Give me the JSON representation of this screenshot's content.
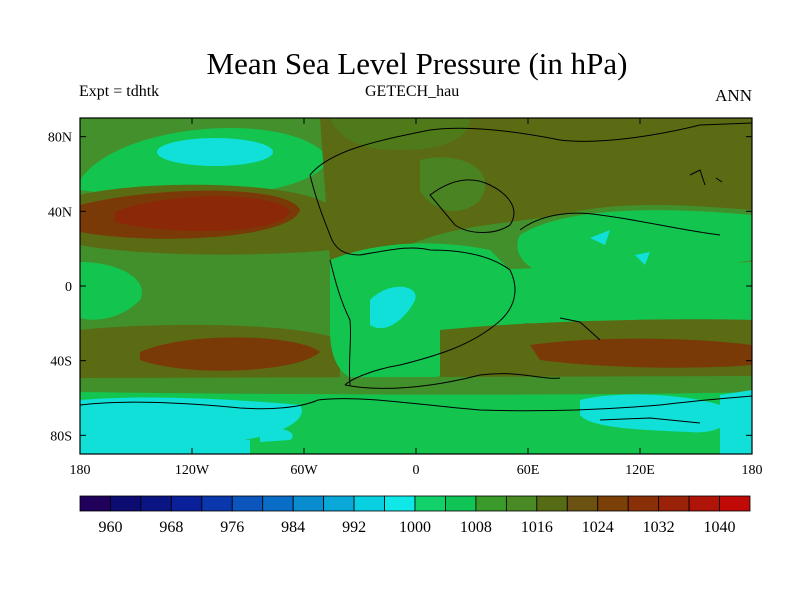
{
  "title": "Mean Sea Level Pressure (in hPa)",
  "left_label": "Expt = tdhtk",
  "center_label": "GETECH_hau",
  "right_label": "ANN",
  "lon_ticks": [
    {
      "value": -180,
      "label": "180"
    },
    {
      "value": -120,
      "label": "120W"
    },
    {
      "value": -60,
      "label": "60W"
    },
    {
      "value": 0,
      "label": "0"
    },
    {
      "value": 60,
      "label": "60E"
    },
    {
      "value": 120,
      "label": "120E"
    },
    {
      "value": 180,
      "label": "180"
    }
  ],
  "lat_ticks": [
    {
      "value": 80,
      "label": "80N"
    },
    {
      "value": 40,
      "label": "40N"
    },
    {
      "value": 0,
      "label": "0"
    },
    {
      "value": -40,
      "label": "40S"
    },
    {
      "value": -80,
      "label": "80S"
    }
  ],
  "colorbar": {
    "colors": [
      "#20005a",
      "#0b0b72",
      "#0b1483",
      "#0a1f9a",
      "#0b37ad",
      "#0b55bd",
      "#0a6dc8",
      "#0a8cd0",
      "#0aa8d8",
      "#08d0e0",
      "#10e8e8",
      "#12d06a",
      "#10c555",
      "#3a9a2a",
      "#4a8a25",
      "#556b14",
      "#6b5210",
      "#7a4008",
      "#8a3008",
      "#9a2208",
      "#b01408",
      "#c00a08"
    ],
    "labels": [
      "960",
      "968",
      "976",
      "984",
      "992",
      "1000",
      "1008",
      "1016",
      "1024",
      "1032",
      "1040"
    ]
  },
  "legend_colors": {
    "background": "#41902b",
    "cyan": "#10e0d8",
    "bright_green": "#13c54f",
    "olive": "#5a6b14",
    "brown": "#7a3a08",
    "dark_red": "#8b2808"
  }
}
